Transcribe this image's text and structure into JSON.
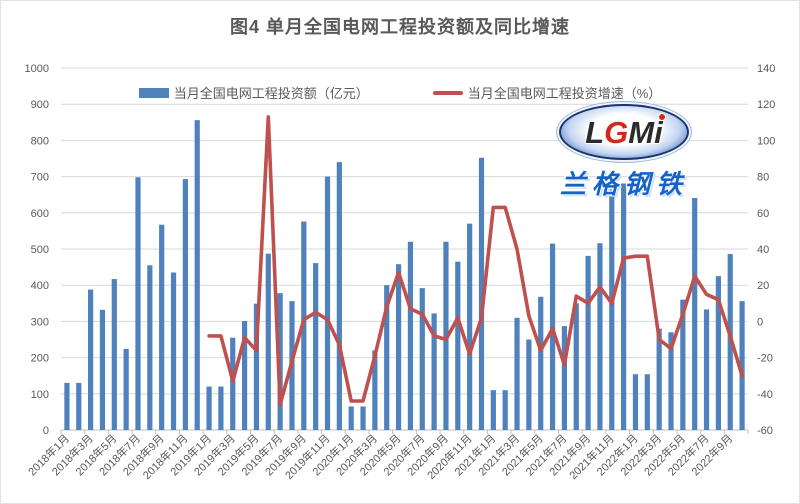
{
  "title": "图4 单月全国电网工程投资额及同比增速",
  "legend": [
    {
      "label": "当月全国电网工程投资额（亿元）",
      "color": "#4F81BD",
      "type": "bar"
    },
    {
      "label": "当月全国电网工程投资增速（%）",
      "color": "#C0504D",
      "type": "line"
    }
  ],
  "watermark": {
    "letters": [
      "L",
      "G",
      "M",
      "i"
    ],
    "brand": "兰格钢铁"
  },
  "chart_data": {
    "type": "bar+line combo",
    "title": "图4 单月全国电网工程投资额及同比增速",
    "grid": true,
    "legend_position": "top",
    "categories": [
      "2018年1月",
      "2018年2月",
      "2018年3月",
      "2018年4月",
      "2018年5月",
      "2018年6月",
      "2018年7月",
      "2018年8月",
      "2018年9月",
      "2018年10月",
      "2018年11月",
      "2018年12月",
      "2019年1月",
      "2019年2月",
      "2019年3月",
      "2019年4月",
      "2019年5月",
      "2019年6月",
      "2019年7月",
      "2019年8月",
      "2019年9月",
      "2019年10月",
      "2019年11月",
      "2019年12月",
      "2020年1月",
      "2020年2月",
      "2020年3月",
      "2020年4月",
      "2020年5月",
      "2020年6月",
      "2020年7月",
      "2020年8月",
      "2020年9月",
      "2020年10月",
      "2020年11月",
      "2020年12月",
      "2021年1月",
      "2021年2月",
      "2021年3月",
      "2021年4月",
      "2021年5月",
      "2021年6月",
      "2021年7月",
      "2021年8月",
      "2021年9月",
      "2021年10月",
      "2021年11月",
      "2021年12月",
      "2022年1月",
      "2022年2月",
      "2022年3月",
      "2022年4月",
      "2022年5月",
      "2022年6月",
      "2022年7月",
      "2022年8月",
      "2022年9月",
      "2022年10月"
    ],
    "x_tick_labels": [
      "2018年1月",
      "2018年3月",
      "2018年5月",
      "2018年7月",
      "2018年9月",
      "2018年11月",
      "2019年1月",
      "2019年3月",
      "2019年5月",
      "2019年7月",
      "2019年9月",
      "2019年11月",
      "2020年1月",
      "2020年3月",
      "2020年5月",
      "2020年7月",
      "2020年9月",
      "2020年11月",
      "2021年1月",
      "2021年3月",
      "2021年5月",
      "2021年7月",
      "2021年9月",
      "2021年11月",
      "2022年1月",
      "2022年3月",
      "2022年5月",
      "2022年7月",
      "2022年9月"
    ],
    "series": [
      {
        "name": "当月全国电网工程投资额（亿元）",
        "type": "bar",
        "axis": "left",
        "color": "#4F81BD",
        "values": [
          130,
          130,
          388,
          332,
          417,
          224,
          698,
          455,
          567,
          435,
          693,
          856,
          120,
          120,
          255,
          301,
          349,
          487,
          378,
          356,
          576,
          461,
          700,
          740,
          65,
          65,
          220,
          400,
          458,
          520,
          392,
          322,
          520,
          465,
          570,
          752,
          110,
          110,
          310,
          250,
          368,
          515,
          287,
          350,
          481,
          516,
          681,
          681,
          154,
          154,
          280,
          270,
          360,
          641,
          333,
          425,
          486,
          356
        ]
      },
      {
        "name": "当月全国电网工程投资增速（%）",
        "type": "line",
        "axis": "right",
        "color": "#C0504D",
        "values": [
          null,
          null,
          null,
          null,
          null,
          null,
          null,
          null,
          null,
          null,
          null,
          null,
          -8,
          -8,
          -33,
          -9,
          -16,
          113,
          -46,
          -22,
          1,
          5,
          1,
          -13,
          -44,
          -44,
          -19,
          8,
          27,
          7,
          4,
          -8,
          -10,
          2,
          -18,
          2,
          63,
          63,
          40,
          3,
          -16,
          -4,
          -24,
          14,
          10,
          19,
          10,
          35,
          36,
          36,
          -10,
          -15,
          4,
          25,
          15,
          12,
          -8,
          -30
        ]
      }
    ],
    "left_axis": {
      "min": 0,
      "max": 1000,
      "step": 100,
      "tick_labels": [
        "0",
        "100",
        "200",
        "300",
        "400",
        "500",
        "600",
        "700",
        "800",
        "900",
        "1000"
      ]
    },
    "right_axis": {
      "min": -60,
      "max": 140,
      "step": 20,
      "tick_labels": [
        "-60",
        "-40",
        "-20",
        "0",
        "20",
        "40",
        "60",
        "80",
        "100",
        "120",
        "140"
      ]
    },
    "colors": {
      "gridline": "#D9D9D9",
      "axis_line": "#BFBFBF",
      "tick_text": "#595959"
    }
  }
}
